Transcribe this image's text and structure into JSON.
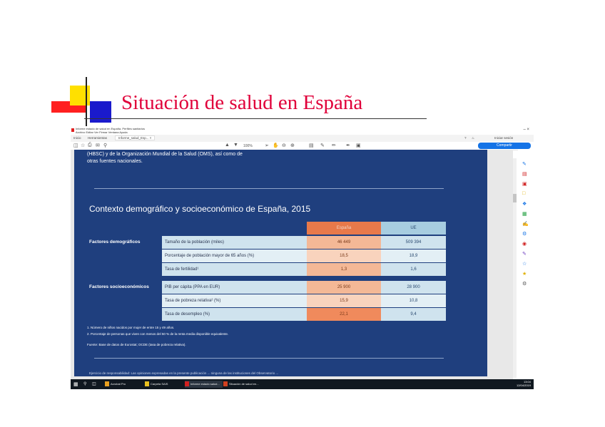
{
  "slide": {
    "title": "Situación de salud en España"
  },
  "window": {
    "title_line1": "Informe estado de salud en España. Perfiles sanitarios",
    "title_line2": "Archivo  Editar  Ver  Firmar  Ventana  Ayuda",
    "controls": "–   ×"
  },
  "tabs": {
    "home": "Inicio",
    "tools": "Herramientas",
    "document": "Informe_salud_Esp... ×",
    "signin": "Iniciar sesión"
  },
  "toolbar": {
    "zoom": "100%",
    "share_label": "Compartir"
  },
  "document": {
    "intro_line1": "(HBSC) y de la Organización Mundial de la Salud (OMS), así como de",
    "intro_line2": "otras fuentes nacionales.",
    "section_title": "Contexto demográfico y socioeconómico de España, 2015",
    "table": {
      "col_es": "España",
      "col_ue": "UE",
      "groups": [
        {
          "label": "Factores demográficos",
          "rows": [
            {
              "indicator": "Tamaño de la población (miles)",
              "es": "46 449",
              "ue": "509 394"
            },
            {
              "indicator": "Porcentaje de población mayor de 65 años (%)",
              "es": "18,5",
              "ue": "18,9"
            },
            {
              "indicator": "Tasa de fertilidad¹",
              "es": "1,3",
              "ue": "1,6"
            }
          ]
        },
        {
          "label": "Factores socioeconómicos",
          "rows": [
            {
              "indicator": "PIB per cápita (PPA en EUR)",
              "es": "25 900",
              "ue": "28 900"
            },
            {
              "indicator": "Tasa de pobreza relativa² (%)",
              "es": "15,9",
              "ue": "10,8"
            },
            {
              "indicator": "Tasa de desempleo (%)",
              "es": "22,1",
              "ue": "9,4"
            }
          ]
        }
      ]
    },
    "note1": "1. Número de niños nacidos por mujer de entre 15 y 49 años.",
    "note2": "2. Porcentaje de personas que viven con menos del 50 % de la renta media disponible equivalente.",
    "source": "Fuente: Base de datos de Eurostat; OCDE (tasa de pobreza relativa).",
    "bottom_text": "Ejercicio de responsabilidad: Las opiniones expresadas en la presente publicación ... ninguna de las instituciones del Observatorio ..."
  },
  "taskbar": {
    "apps": [
      "Acrobat Pro",
      "Carpeta SAIS",
      "Informe estado salud...",
      "Situación de salud en..."
    ],
    "clock_time": "13:04",
    "clock_date": "12/04/2019"
  },
  "colors": {
    "doc_bg": "#1f3f7e",
    "es_header": "#e8794a",
    "ue_header": "#a7cde0",
    "title_red": "#e0003a",
    "accent_blue": "#1473e6"
  }
}
